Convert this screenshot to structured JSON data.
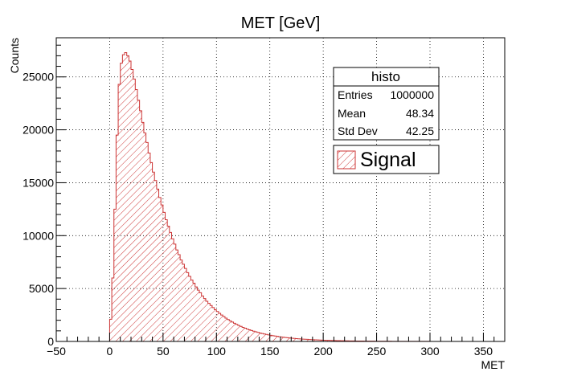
{
  "chart_data": {
    "type": "histogram",
    "title": "MET [GeV]",
    "xlabel": "MET",
    "ylabel": "Counts",
    "xlim": [
      -50,
      370
    ],
    "ylim": [
      0,
      28700
    ],
    "x_ticks": [
      -50,
      0,
      50,
      100,
      150,
      200,
      250,
      300,
      350
    ],
    "y_ticks": [
      0,
      5000,
      10000,
      15000,
      20000,
      25000
    ],
    "grid": true,
    "bin_width": 2,
    "bin_start": 0,
    "values": [
      2100,
      6000,
      12500,
      19500,
      24300,
      26300,
      27100,
      27300,
      27000,
      26500,
      25700,
      24800,
      23800,
      22800,
      21800,
      20700,
      19700,
      18800,
      17800,
      16900,
      16000,
      15200,
      14400,
      13600,
      12900,
      12200,
      11500,
      10900,
      10300,
      9700,
      9200,
      8650,
      8200,
      7700,
      7300,
      6900,
      6500,
      6150,
      5800,
      5500,
      5150,
      4850,
      4600,
      4300,
      4050,
      3800,
      3600,
      3400,
      3200,
      3000,
      2830,
      2660,
      2500,
      2350,
      2200,
      2070,
      1950,
      1830,
      1720,
      1610,
      1510,
      1420,
      1330,
      1250,
      1170,
      1100,
      1030,
      970,
      910,
      850,
      800,
      750,
      700,
      660,
      620,
      580,
      545,
      510,
      480,
      450,
      420,
      395,
      370,
      350,
      325,
      305,
      285,
      270,
      250,
      235,
      220,
      205,
      195,
      180,
      170,
      160,
      150,
      140,
      130,
      122,
      115,
      108,
      100,
      95,
      88,
      82,
      77,
      72,
      68,
      63,
      59,
      55,
      52,
      48,
      45,
      42,
      40,
      37,
      35,
      32,
      30,
      28,
      26,
      25,
      23,
      22,
      20,
      19,
      18,
      17,
      16,
      15,
      14,
      13,
      12,
      11,
      10,
      10,
      9,
      9,
      8,
      8,
      7,
      7,
      6,
      6,
      6,
      5,
      5,
      5,
      0,
      0,
      0,
      0,
      0,
      0,
      0,
      0,
      0,
      0,
      0,
      0,
      0,
      0,
      0,
      0,
      0,
      0,
      0,
      0,
      0,
      0,
      0,
      0,
      0,
      0,
      0,
      0,
      0
    ],
    "series_color": "#cc3333",
    "fill_pattern": "hatched"
  },
  "stats_box": {
    "title": "histo",
    "rows": [
      {
        "label": "Entries",
        "value": "1000000"
      },
      {
        "label": "Mean",
        "value": "48.34"
      },
      {
        "label": "Std Dev",
        "value": "42.25"
      }
    ]
  },
  "legend": {
    "label": "Signal"
  }
}
